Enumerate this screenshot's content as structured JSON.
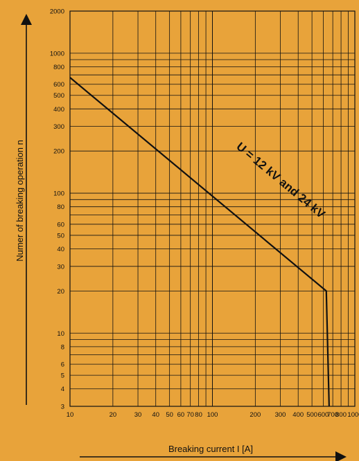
{
  "chart_data": {
    "type": "line",
    "title": "",
    "xlabel": "Breaking current I [A]",
    "ylabel": "Numer of breaking operation n",
    "x_scale": "log",
    "y_scale": "log",
    "xlim": [
      10,
      1000
    ],
    "ylim": [
      3,
      2000
    ],
    "grid": true,
    "x_ticks": [
      10,
      20,
      30,
      40,
      50,
      60,
      70,
      80,
      100,
      200,
      300,
      400,
      500,
      600,
      700,
      800,
      1000
    ],
    "x_tick_labels": [
      "10",
      "20",
      "30",
      "40",
      "50",
      "60",
      "70",
      "80",
      "100",
      "200",
      "300",
      "400",
      "500",
      "600",
      "700",
      "800",
      "1000"
    ],
    "y_ticks": [
      3,
      4,
      5,
      6,
      8,
      10,
      20,
      30,
      40,
      50,
      60,
      80,
      100,
      200,
      300,
      400,
      500,
      600,
      800,
      1000,
      2000
    ],
    "y_tick_labels": [
      "3",
      "4",
      "5",
      "6",
      "8",
      "10",
      "20",
      "30",
      "40",
      "50",
      "60",
      "80",
      "100",
      "200",
      "300",
      "400",
      "500",
      "600",
      "800",
      "1000",
      "2000"
    ],
    "series": [
      {
        "x": [
          10,
          630,
          660
        ],
        "y": [
          670,
          20,
          3
        ]
      }
    ],
    "annotations": [
      {
        "text": "U = 12 kV and 24 kV",
        "x": 140,
        "y": 110
      }
    ],
    "colors": {
      "background": "#e8a33a",
      "line": "#111111"
    }
  }
}
